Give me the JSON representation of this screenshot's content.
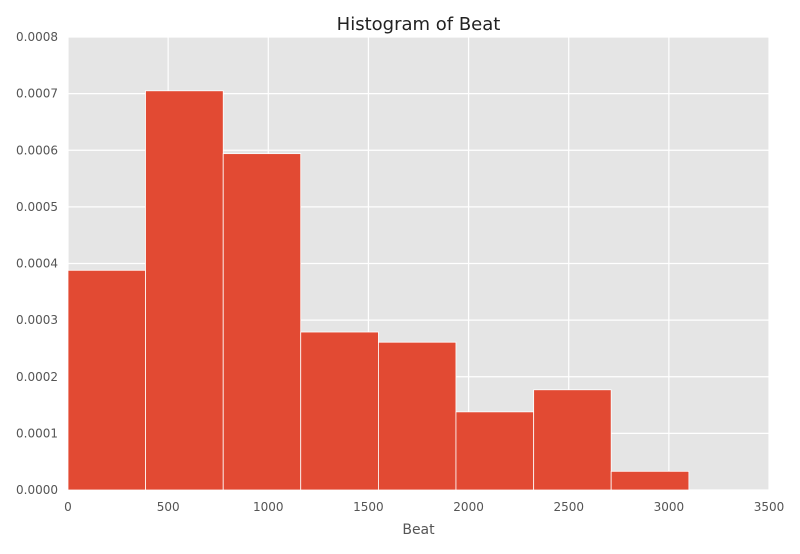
{
  "chart_data": {
    "type": "bar",
    "title": "Histogram of Beat",
    "xlabel": "Beat",
    "ylabel": "",
    "xlim": [
      0,
      3500
    ],
    "ylim": [
      0,
      0.0008
    ],
    "x_ticks": [
      0,
      500,
      1000,
      1500,
      2000,
      2500,
      3000,
      3500
    ],
    "y_ticks": [
      0.0,
      0.0001,
      0.0002,
      0.0003,
      0.0004,
      0.0005,
      0.0006,
      0.0007,
      0.0008
    ],
    "x_tick_labels": [
      "0",
      "500",
      "1000",
      "1500",
      "2000",
      "2500",
      "3000",
      "3500"
    ],
    "y_tick_labels": [
      "0.0000",
      "0.0001",
      "0.0002",
      "0.0003",
      "0.0004",
      "0.0005",
      "0.0006",
      "0.0007",
      "0.0008"
    ],
    "grid": true,
    "bins": [
      {
        "x0": 0,
        "x1": 387,
        "value": 0.000388
      },
      {
        "x0": 387,
        "x1": 775,
        "value": 0.000705
      },
      {
        "x0": 775,
        "x1": 1162,
        "value": 0.000594
      },
      {
        "x0": 1162,
        "x1": 1550,
        "value": 0.000279
      },
      {
        "x0": 1550,
        "x1": 1937,
        "value": 0.000261
      },
      {
        "x0": 1937,
        "x1": 2325,
        "value": 0.000138
      },
      {
        "x0": 2325,
        "x1": 2712,
        "value": 0.000177
      },
      {
        "x0": 2712,
        "x1": 3100,
        "value": 3.3e-05
      }
    ],
    "colors": {
      "bar": "#E24A33",
      "plot_background": "#E5E5E5",
      "grid": "#FFFFFF",
      "text": "#555555",
      "title": "#222222"
    }
  }
}
